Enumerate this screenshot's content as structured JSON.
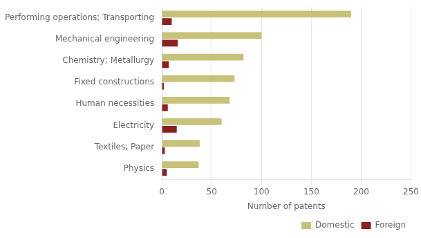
{
  "chart_data": {
    "type": "bar",
    "orientation": "horizontal",
    "categories": [
      "Performing operations; Transporting",
      "Mechanical engineering",
      "Chemistry; Metallurgy",
      "Fixed constructions",
      "Human necessities",
      "Electricity",
      "Textiles; Paper",
      "Physics"
    ],
    "series": [
      {
        "name": "Domestic",
        "color": "#c8c17a",
        "values": [
          190,
          100,
          82,
          73,
          68,
          60,
          38,
          37
        ]
      },
      {
        "name": "Foreign",
        "color": "#8b2020",
        "values": [
          10,
          16,
          7,
          2,
          6,
          15,
          3,
          5
        ]
      }
    ],
    "xlabel": "Number of patents",
    "xlim": [
      0,
      250
    ],
    "xticks": [
      0,
      50,
      100,
      150,
      200,
      250
    ],
    "grid": true,
    "legend": "lower right"
  }
}
